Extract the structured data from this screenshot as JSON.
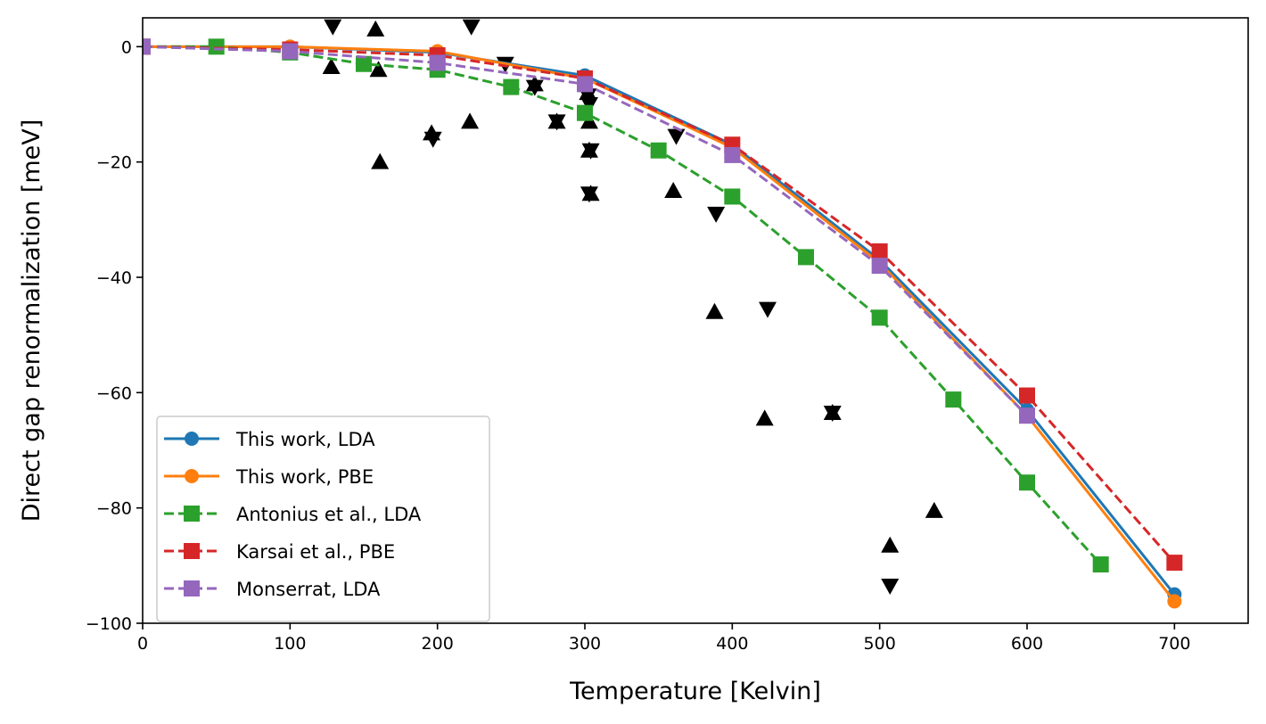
{
  "chart_data": {
    "type": "line",
    "title": "",
    "xlabel": "Temperature [Kelvin]",
    "ylabel": "Direct gap renormalization [meV]",
    "xlim": [
      0,
      750
    ],
    "ylim": [
      -100,
      5
    ],
    "xticks": [
      0,
      100,
      200,
      300,
      400,
      500,
      600,
      700
    ],
    "yticks": [
      0,
      -20,
      -40,
      -60,
      -80,
      -100
    ],
    "grid": false,
    "legend_position": "lower-left",
    "series": [
      {
        "name": "This work, LDA",
        "color": "#1f77b4",
        "linestyle": "solid",
        "marker": "circle",
        "x": [
          0,
          100,
          200,
          300,
          400,
          500,
          600,
          700
        ],
        "y": [
          0,
          0,
          -1,
          -5,
          -17,
          -37,
          -63,
          -95
        ]
      },
      {
        "name": "This work, PBE",
        "color": "#ff7f0e",
        "linestyle": "solid",
        "marker": "circle",
        "x": [
          0,
          100,
          200,
          300,
          400,
          500,
          600,
          700
        ],
        "y": [
          0,
          0,
          -0.8,
          -5.5,
          -17.5,
          -37.5,
          -64,
          -96.2
        ]
      },
      {
        "name": "Antonius et al., LDA",
        "color": "#2ca02c",
        "linestyle": "dashed",
        "marker": "square",
        "x": [
          0,
          50,
          100,
          150,
          200,
          250,
          300,
          350,
          400,
          450,
          500,
          550,
          600,
          650
        ],
        "y": [
          0,
          0,
          -1,
          -3,
          -4,
          -7,
          -11.5,
          -18,
          -26,
          -36.5,
          -47,
          -61.2,
          -75.6,
          -89.8
        ]
      },
      {
        "name": "Karsai et al., PBE",
        "color": "#d62728",
        "linestyle": "dashed",
        "marker": "square",
        "x": [
          0,
          100,
          200,
          300,
          400,
          500,
          600,
          700
        ],
        "y": [
          0,
          -0.5,
          -1.5,
          -5.5,
          -17,
          -35.5,
          -60.5,
          -89.5
        ]
      },
      {
        "name": "Monserrat, LDA",
        "color": "#9467bd",
        "linestyle": "dashed",
        "marker": "square",
        "x": [
          0,
          100,
          200,
          300,
          400,
          500,
          600
        ],
        "y": [
          0,
          -0.8,
          -2.8,
          -6.5,
          -18.8,
          -38,
          -64
        ]
      }
    ],
    "experimental_points": [
      {
        "marker": "triangle-up",
        "color": "#000000",
        "x": [
          128,
          158,
          160,
          161,
          196,
          222,
          266,
          281,
          302,
          303,
          304,
          303,
          360,
          388,
          422,
          468,
          507,
          537
        ],
        "y": [
          -3.5,
          3,
          -4,
          -20,
          -15,
          -13,
          -6.5,
          -13,
          -8,
          -13,
          -25.5,
          -18,
          -25,
          -46,
          -64.5,
          -63.5,
          -86.5,
          -80.5
        ]
      },
      {
        "marker": "triangle-down",
        "color": "#000000",
        "x": [
          129,
          223,
          246,
          197,
          266,
          281,
          302,
          303,
          304,
          303,
          362,
          389,
          424,
          468,
          507
        ],
        "y": [
          3.5,
          3.5,
          -3,
          -16,
          -7,
          -13,
          -8.5,
          -10,
          -18,
          -25.5,
          -15.5,
          -29,
          -45.5,
          -63.5,
          -93.5
        ]
      }
    ]
  }
}
